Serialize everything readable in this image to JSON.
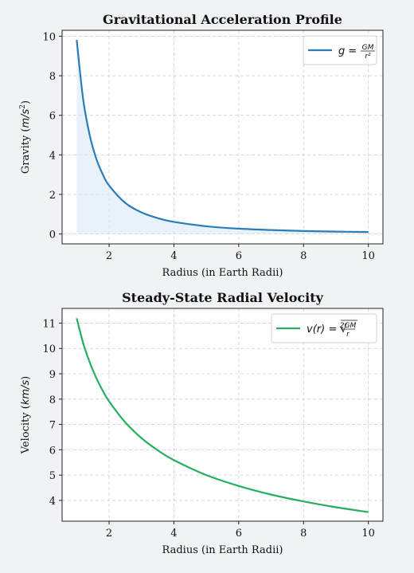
{
  "chart_data": [
    {
      "type": "area",
      "title": "Gravitational Acceleration Profile",
      "xlabel": "Radius (in Earth Radii)",
      "ylabel_text": "Gravity (",
      "ylabel_unit": "m/s",
      "ylabel_exp": "2",
      "ylabel_close": ")",
      "xlim": [
        0.55,
        10.45
      ],
      "ylim": [
        -0.5,
        10.3
      ],
      "xticks": [
        2,
        4,
        6,
        8,
        10
      ],
      "yticks": [
        0,
        2,
        4,
        6,
        8,
        10
      ],
      "grid": true,
      "legend_position": "top-right",
      "series": [
        {
          "legend_lhs": "g = ",
          "legend_num": "GM",
          "legend_den": "r²",
          "color": "#2a7db8",
          "fill": "#daeaf5",
          "x": [
            1.0,
            1.2,
            1.4,
            1.6,
            1.8,
            2.0,
            2.5,
            3.0,
            3.5,
            4.0,
            5.0,
            6.0,
            7.0,
            8.0,
            9.0,
            10.0
          ],
          "y": [
            9.81,
            6.81,
            5.01,
            3.83,
            3.03,
            2.45,
            1.57,
            1.09,
            0.8,
            0.61,
            0.39,
            0.27,
            0.2,
            0.15,
            0.12,
            0.1
          ]
        }
      ]
    },
    {
      "type": "line",
      "title": "Steady-State Radial Velocity",
      "xlabel": "Radius (in Earth Radii)",
      "ylabel_text": "Velocity (",
      "ylabel_unit": "km/s",
      "ylabel_close": ")",
      "xlim": [
        0.55,
        10.45
      ],
      "ylim": [
        3.18,
        11.58
      ],
      "xticks": [
        2,
        4,
        6,
        8,
        10
      ],
      "yticks": [
        4,
        5,
        6,
        7,
        8,
        9,
        10,
        11
      ],
      "grid": true,
      "legend_position": "top-right",
      "series": [
        {
          "legend_lhs": "v(r) = √",
          "legend_num": "2GM",
          "legend_den": "r",
          "color": "#27ae60",
          "x": [
            1.0,
            1.2,
            1.4,
            1.6,
            1.8,
            2.0,
            2.5,
            3.0,
            3.5,
            4.0,
            5.0,
            6.0,
            7.0,
            8.0,
            9.0,
            10.0
          ],
          "y": [
            11.19,
            10.21,
            9.46,
            8.85,
            8.34,
            7.91,
            7.08,
            6.46,
            5.98,
            5.59,
            5.0,
            4.57,
            4.23,
            3.96,
            3.73,
            3.54
          ]
        }
      ]
    }
  ]
}
